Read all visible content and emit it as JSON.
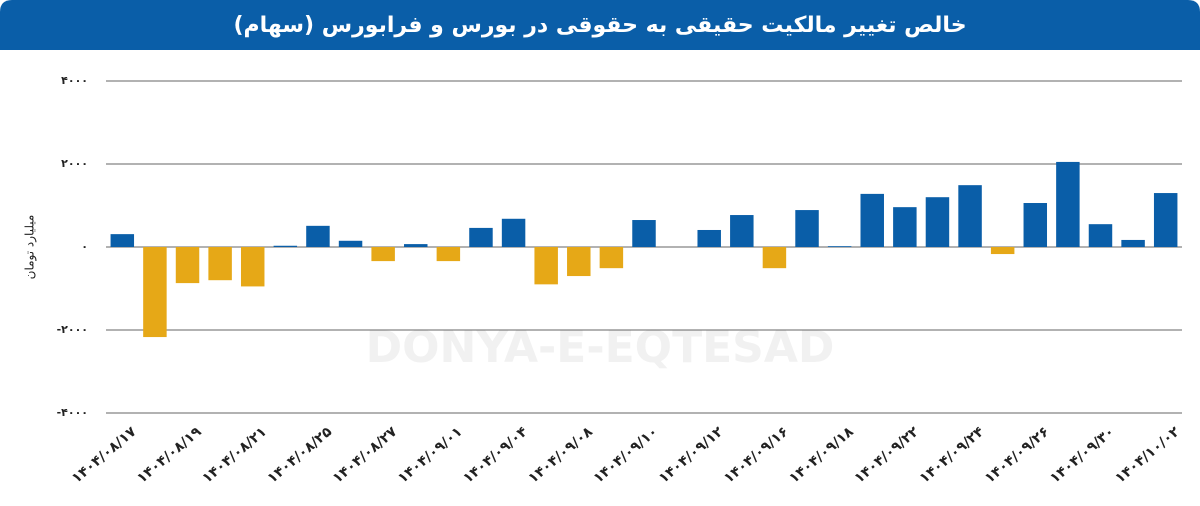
{
  "chart_data": {
    "type": "bar",
    "title": "خالص تغییر مالکیت حقیقی به حقوقی در بورس و فرابورس (سهام)",
    "y_label": "میلیارد تومان",
    "watermark": "DONYA-E-EQTESAD",
    "categories": [
      "۱۴۰۴/۰۸/۱۷",
      null,
      "۱۴۰۴/۰۸/۱۹",
      null,
      "۱۴۰۴/۰۸/۲۱",
      null,
      "۱۴۰۴/۰۸/۲۵",
      null,
      "۱۴۰۴/۰۸/۲۷",
      null,
      "۱۴۰۴/۰۹/۰۱",
      null,
      "۱۴۰۴/۰۹/۰۴",
      null,
      "۱۴۰۴/۰۹/۰۸",
      null,
      "۱۴۰۴/۰۹/۱۰",
      null,
      "۱۴۰۴/۰۹/۱۲",
      null,
      "۱۴۰۴/۰۹/۱۶",
      null,
      "۱۴۰۴/۰۹/۱۸",
      null,
      "۱۴۰۴/۰۹/۲۲",
      null,
      "۱۴۰۴/۰۹/۲۴",
      null,
      "۱۴۰۴/۰۹/۲۶",
      null,
      "۱۴۰۴/۰۹/۳۰",
      null,
      "۱۴۰۴/۱۰/۰۲"
    ],
    "values": [
      310,
      -2170,
      -870,
      -800,
      -950,
      30,
      510,
      150,
      -340,
      70,
      -340,
      460,
      680,
      -900,
      -700,
      -510,
      650,
      0,
      410,
      770,
      -510,
      890,
      20,
      1280,
      960,
      1200,
      1490,
      -170,
      1060,
      2050,
      550,
      170,
      1300
    ],
    "positive_color": "#0a5ea8",
    "negative_color": "#e6a817",
    "ylim": [
      -4000,
      4000
    ],
    "yticks": [
      {
        "value": 4000,
        "label": "۴۰۰۰"
      },
      {
        "value": 2000,
        "label": "۲۰۰۰"
      },
      {
        "value": 0,
        "label": "۰"
      },
      {
        "value": -2000,
        "label": "-۲۰۰۰"
      },
      {
        "value": -4000,
        "label": "-۴۰۰۰"
      }
    ],
    "grid": true
  }
}
